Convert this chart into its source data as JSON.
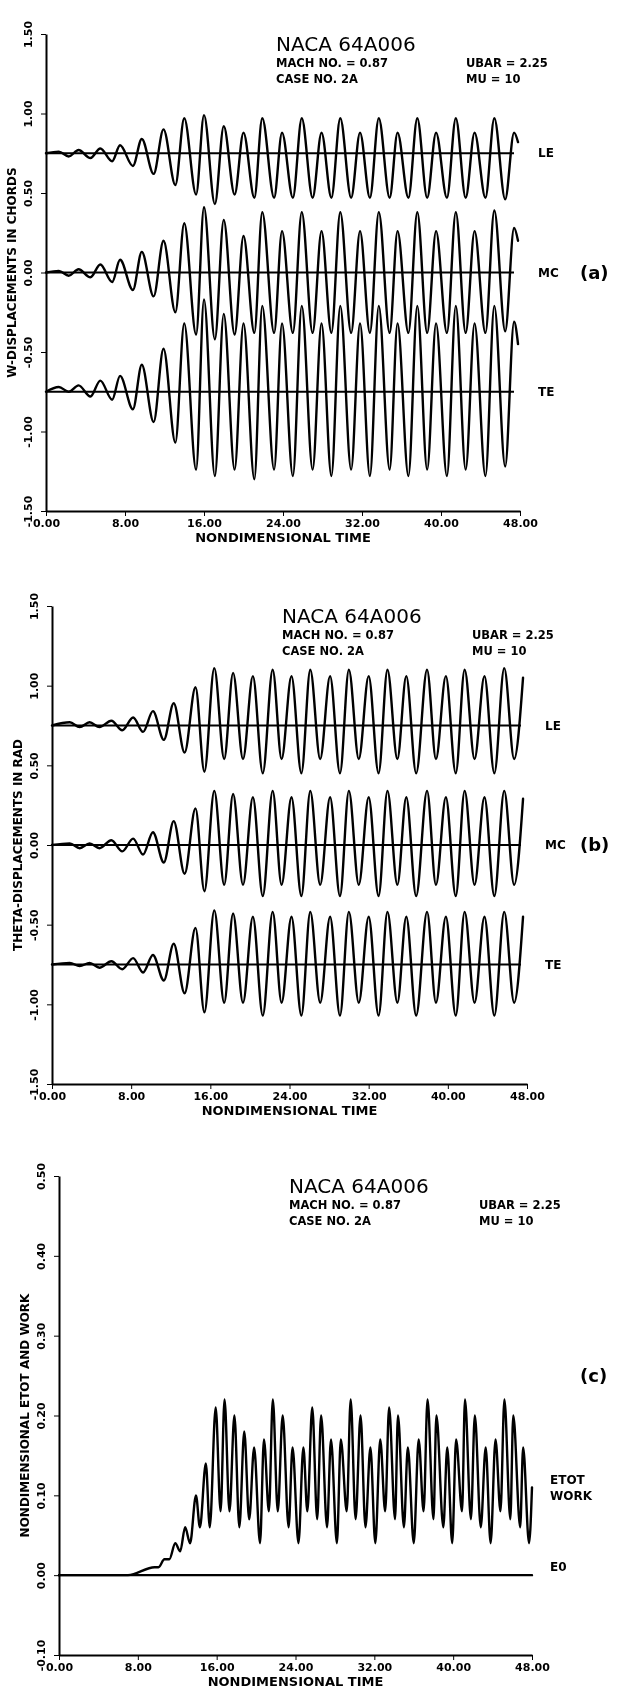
{
  "chart_data": [
    {
      "type": "line",
      "title": "NACA 64A006",
      "xlabel": "NONDIMENSIONAL TIME",
      "ylabel": "W-DISPLACEMENTS IN CHORDS",
      "annotations": [
        "MACH NO. = 0.87",
        "UBAR = 2.25",
        "CASE NO. 2A",
        "MU = 10",
        "(a)"
      ],
      "xlim": [
        0,
        48
      ],
      "xticks": [
        {
          "value": 0,
          "label": "0.00"
        },
        {
          "value": 8,
          "label": "8.00"
        },
        {
          "value": 16,
          "label": "16.00"
        },
        {
          "value": 24,
          "label": "24.00"
        },
        {
          "value": 32,
          "label": "32.00"
        },
        {
          "value": 40,
          "label": "40.00"
        },
        {
          "value": 48,
          "label": "48.00"
        }
      ],
      "ylim": [
        -1.5,
        1.5
      ],
      "yticks": [
        {
          "value": -1.5,
          "label": "-1.50"
        },
        {
          "value": -1,
          "label": "-1.00"
        },
        {
          "value": -0.5,
          "label": "-0.50"
        },
        {
          "value": 0,
          "label": "0.00"
        },
        {
          "value": 0.5,
          "label": "0.50"
        },
        {
          "value": 1,
          "label": "1.00"
        },
        {
          "value": 1.5,
          "label": "1.50"
        }
      ],
      "ref_lines": [
        {
          "axis": "y",
          "value": 0.75,
          "color": "#000000"
        },
        {
          "axis": "y",
          "value": 0,
          "color": "#000000"
        },
        {
          "axis": "y",
          "value": -0.75,
          "color": "#000000"
        }
      ],
      "series": [
        {
          "name": "LE",
          "color": "#000000",
          "x": [
            0,
            1.3,
            2.3,
            3.3,
            4.5,
            5.5,
            6.7,
            7.5,
            8.8,
            9.7,
            10.9,
            11.9,
            13.1,
            14.0,
            15.2,
            16.0,
            17.1,
            18.0,
            19.1,
            20.0,
            21.1,
            21.9,
            23.1,
            23.9,
            25.0,
            25.9,
            27.0,
            27.9,
            28.9,
            29.8,
            30.9,
            31.8,
            32.8,
            33.7,
            34.8,
            35.6,
            36.7,
            37.6,
            38.6,
            39.5,
            40.6,
            41.5,
            42.5,
            43.4,
            44.5,
            45.4,
            46.5,
            47.4,
            47.8
          ],
          "values": [
            0.75,
            0.76,
            0.73,
            0.77,
            0.72,
            0.78,
            0.7,
            0.8,
            0.67,
            0.84,
            0.62,
            0.9,
            0.55,
            0.97,
            0.49,
            0.99,
            0.43,
            0.92,
            0.49,
            0.88,
            0.47,
            0.97,
            0.47,
            0.88,
            0.47,
            0.97,
            0.47,
            0.88,
            0.47,
            0.97,
            0.47,
            0.88,
            0.47,
            0.97,
            0.47,
            0.88,
            0.47,
            0.97,
            0.47,
            0.88,
            0.47,
            0.97,
            0.47,
            0.88,
            0.47,
            0.97,
            0.46,
            0.88,
            0.82
          ]
        },
        {
          "name": "MC",
          "color": "#000000",
          "x": [
            0,
            1.3,
            2.3,
            3.3,
            4.5,
            5.5,
            6.7,
            7.5,
            8.8,
            9.7,
            10.9,
            11.9,
            13.1,
            14.0,
            15.2,
            16.0,
            17.1,
            18.0,
            19.1,
            20.0,
            21.1,
            21.9,
            23.1,
            23.9,
            25.0,
            25.9,
            27.0,
            27.9,
            28.9,
            29.8,
            30.9,
            31.8,
            32.8,
            33.7,
            34.8,
            35.6,
            36.7,
            37.6,
            38.6,
            39.5,
            40.6,
            41.5,
            42.5,
            43.4,
            44.5,
            45.4,
            46.5,
            47.4,
            47.8
          ],
          "values": [
            0,
            0.01,
            -0.02,
            0.02,
            -0.03,
            0.05,
            -0.06,
            0.08,
            -0.11,
            0.13,
            -0.15,
            0.2,
            -0.25,
            0.31,
            -0.39,
            0.41,
            -0.42,
            0.33,
            -0.39,
            0.23,
            -0.38,
            0.38,
            -0.38,
            0.26,
            -0.38,
            0.38,
            -0.38,
            0.26,
            -0.38,
            0.38,
            -0.38,
            0.26,
            -0.38,
            0.38,
            -0.38,
            0.26,
            -0.38,
            0.38,
            -0.38,
            0.26,
            -0.38,
            0.38,
            -0.38,
            0.26,
            -0.38,
            0.39,
            -0.37,
            0.28,
            0.2
          ]
        },
        {
          "name": "TE",
          "color": "#000000",
          "x": [
            0,
            1.3,
            2.3,
            3.3,
            4.5,
            5.5,
            6.7,
            7.5,
            8.8,
            9.7,
            10.9,
            11.9,
            13.1,
            14.0,
            15.2,
            16.0,
            17.1,
            18.0,
            19.1,
            20.0,
            21.1,
            21.9,
            23.1,
            23.9,
            25.0,
            25.9,
            27.0,
            27.9,
            28.9,
            29.8,
            30.9,
            31.8,
            32.8,
            33.7,
            34.8,
            35.6,
            36.7,
            37.6,
            38.6,
            39.5,
            40.6,
            41.5,
            42.5,
            43.4,
            44.5,
            45.4,
            46.5,
            47.4,
            47.8
          ],
          "values": [
            -0.75,
            -0.72,
            -0.75,
            -0.71,
            -0.78,
            -0.68,
            -0.8,
            -0.65,
            -0.86,
            -0.58,
            -0.94,
            -0.48,
            -1.07,
            -0.32,
            -1.24,
            -0.17,
            -1.28,
            -0.26,
            -1.24,
            -0.32,
            -1.3,
            -0.21,
            -1.24,
            -0.32,
            -1.28,
            -0.21,
            -1.24,
            -0.32,
            -1.28,
            -0.21,
            -1.24,
            -0.32,
            -1.28,
            -0.21,
            -1.24,
            -0.32,
            -1.28,
            -0.21,
            -1.24,
            -0.32,
            -1.28,
            -0.21,
            -1.24,
            -0.32,
            -1.28,
            -0.21,
            -1.22,
            -0.31,
            -0.45
          ]
        }
      ]
    },
    {
      "type": "line",
      "title": "NACA 64A006",
      "xlabel": "NONDIMENSIONAL TIME",
      "ylabel": "THETA-DISPLACEMENTS IN RAD",
      "annotations": [
        "MACH NO. = 0.87",
        "UBAR = 2.25",
        "CASE NO. 2A",
        "MU = 10",
        "(b)"
      ],
      "xlim": [
        0,
        48
      ],
      "xticks": [
        {
          "value": 0,
          "label": "0.00"
        },
        {
          "value": 8,
          "label": "8.00"
        },
        {
          "value": 16,
          "label": "16.00"
        },
        {
          "value": 24,
          "label": "24.00"
        },
        {
          "value": 32,
          "label": "32.00"
        },
        {
          "value": 40,
          "label": "40.00"
        },
        {
          "value": 48,
          "label": "48.00"
        }
      ],
      "ylim": [
        -1.5,
        1.5
      ],
      "yticks": [
        {
          "value": -1.5,
          "label": "-1.50"
        },
        {
          "value": -1,
          "label": "-1.00"
        },
        {
          "value": -0.5,
          "label": "-0.50"
        },
        {
          "value": 0,
          "label": "0.00"
        },
        {
          "value": 0.5,
          "label": "0.50"
        },
        {
          "value": 1,
          "label": "1.00"
        },
        {
          "value": 1.5,
          "label": "1.50"
        }
      ],
      "ref_lines": [
        {
          "axis": "y",
          "value": 0.75,
          "color": "#000000"
        },
        {
          "axis": "y",
          "value": 0,
          "color": "#000000"
        },
        {
          "axis": "y",
          "value": -0.75,
          "color": "#000000"
        }
      ],
      "series": [
        {
          "name": "LE",
          "color": "#000000",
          "x": [
            0,
            1.8,
            2.8,
            3.8,
            4.8,
            6.0,
            7.1,
            8.2,
            9.2,
            10.2,
            11.3,
            12.3,
            13.4,
            14.5,
            15.4,
            16.4,
            17.4,
            18.3,
            19.3,
            20.3,
            21.3,
            22.3,
            23.2,
            24.2,
            25.2,
            26.1,
            27.1,
            28.1,
            29.1,
            30.0,
            31.0,
            32.0,
            33.0,
            33.9,
            34.9,
            35.8,
            36.8,
            37.9,
            38.8,
            39.8,
            40.8,
            41.7,
            42.7,
            43.7,
            44.7,
            45.7,
            46.7,
            47.6
          ],
          "values": [
            0.75,
            0.77,
            0.74,
            0.77,
            0.74,
            0.78,
            0.72,
            0.8,
            0.71,
            0.84,
            0.66,
            0.89,
            0.58,
            0.99,
            0.46,
            1.11,
            0.54,
            1.08,
            0.54,
            1.06,
            0.45,
            1.1,
            0.54,
            1.06,
            0.45,
            1.1,
            0.54,
            1.06,
            0.45,
            1.1,
            0.54,
            1.06,
            0.45,
            1.1,
            0.54,
            1.06,
            0.45,
            1.1,
            0.54,
            1.06,
            0.45,
            1.1,
            0.54,
            1.06,
            0.45,
            1.11,
            0.54,
            1.05
          ]
        },
        {
          "name": "MC",
          "color": "#000000",
          "x": [
            0,
            1.8,
            2.8,
            3.8,
            4.8,
            6.0,
            7.1,
            8.2,
            9.2,
            10.2,
            11.3,
            12.3,
            13.4,
            14.5,
            15.4,
            16.4,
            17.4,
            18.3,
            19.3,
            20.3,
            21.3,
            22.3,
            23.2,
            24.2,
            25.2,
            26.1,
            27.1,
            28.1,
            29.1,
            30.0,
            31.0,
            32.0,
            33.0,
            33.9,
            34.9,
            35.8,
            36.8,
            37.9,
            38.8,
            39.8,
            40.8,
            41.7,
            42.7,
            43.7,
            44.7,
            45.7,
            46.7,
            47.6
          ],
          "values": [
            0,
            0.01,
            -0.02,
            0.01,
            -0.02,
            0.03,
            -0.04,
            0.04,
            -0.06,
            0.08,
            -0.11,
            0.15,
            -0.18,
            0.23,
            -0.29,
            0.34,
            -0.25,
            0.32,
            -0.25,
            0.3,
            -0.32,
            0.34,
            -0.25,
            0.3,
            -0.32,
            0.34,
            -0.25,
            0.3,
            -0.32,
            0.34,
            -0.25,
            0.3,
            -0.32,
            0.34,
            -0.25,
            0.3,
            -0.32,
            0.34,
            -0.25,
            0.3,
            -0.32,
            0.34,
            -0.25,
            0.3,
            -0.32,
            0.34,
            -0.25,
            0.29
          ]
        },
        {
          "name": "TE",
          "color": "#000000",
          "x": [
            0,
            1.8,
            2.8,
            3.8,
            4.8,
            6.0,
            7.1,
            8.2,
            9.2,
            10.2,
            11.3,
            12.3,
            13.4,
            14.5,
            15.4,
            16.4,
            17.4,
            18.3,
            19.3,
            20.3,
            21.3,
            22.3,
            23.2,
            24.2,
            25.2,
            26.1,
            27.1,
            28.1,
            29.1,
            30.0,
            31.0,
            32.0,
            33.0,
            33.9,
            34.9,
            35.8,
            36.8,
            37.9,
            38.8,
            39.8,
            40.8,
            41.7,
            42.7,
            43.7,
            44.7,
            45.7,
            46.7,
            47.6
          ],
          "values": [
            -0.75,
            -0.74,
            -0.76,
            -0.74,
            -0.77,
            -0.73,
            -0.78,
            -0.71,
            -0.8,
            -0.69,
            -0.85,
            -0.62,
            -0.93,
            -0.52,
            -1.05,
            -0.41,
            -0.99,
            -0.43,
            -0.99,
            -0.45,
            -1.07,
            -0.42,
            -0.99,
            -0.45,
            -1.07,
            -0.42,
            -0.99,
            -0.45,
            -1.07,
            -0.42,
            -0.99,
            -0.45,
            -1.07,
            -0.42,
            -0.99,
            -0.45,
            -1.07,
            -0.42,
            -0.99,
            -0.45,
            -1.07,
            -0.42,
            -0.99,
            -0.45,
            -1.07,
            -0.42,
            -0.99,
            -0.45
          ]
        }
      ]
    },
    {
      "type": "line",
      "title": "NACA 64A006",
      "xlabel": "NONDIMENSIONAL TIME",
      "ylabel": "NONDIMENSIONAL ETOT AND WORK",
      "annotations": [
        "MACH NO. = 0.87",
        "UBAR = 2.25",
        "CASE NO. 2A",
        "MU = 10",
        "(c)",
        "WORK"
      ],
      "xlim": [
        0,
        48
      ],
      "xticks": [
        {
          "value": 0,
          "label": "0.00"
        },
        {
          "value": 8,
          "label": "8.00"
        },
        {
          "value": 16,
          "label": "16.00"
        },
        {
          "value": 24,
          "label": "24.00"
        },
        {
          "value": 32,
          "label": "32.00"
        },
        {
          "value": 40,
          "label": "40.00"
        },
        {
          "value": 48,
          "label": "48.00"
        }
      ],
      "ylim": [
        -0.1,
        0.5
      ],
      "yticks": [
        {
          "value": -0.1,
          "label": "-0.10"
        },
        {
          "value": 0,
          "label": "0.00"
        },
        {
          "value": 0.1,
          "label": "0.10"
        },
        {
          "value": 0.2,
          "label": "0.20"
        },
        {
          "value": 0.3,
          "label": "0.30"
        },
        {
          "value": 0.4,
          "label": "0.40"
        },
        {
          "value": 0.5,
          "label": "0.50"
        }
      ],
      "series": [
        {
          "name": "ETOT",
          "color": "#000000",
          "x": [
            0,
            7.0,
            9.7,
            10.1,
            10.7,
            11.2,
            11.8,
            12.3,
            12.8,
            13.3,
            13.9,
            14.3,
            14.9,
            15.3,
            15.9,
            16.4,
            16.8,
            17.3,
            17.8,
            18.3,
            18.8,
            19.3,
            19.8,
            20.4,
            20.8,
            21.3,
            21.7,
            22.2,
            22.7,
            23.3,
            23.7,
            24.3,
            24.8,
            25.2,
            25.7,
            26.2,
            26.6,
            27.2,
            27.6,
            28.2,
            28.6,
            29.2,
            29.6,
            30.1,
            30.6,
            31.1,
            31.6,
            32.1,
            32.6,
            33.1,
            33.5,
            34.1,
            34.4,
            35.0,
            35.4,
            36.0,
            36.5,
            37.0,
            37.4,
            38.0,
            38.3,
            39.0,
            39.4,
            39.9,
            40.3,
            40.9,
            41.2,
            41.8,
            42.2,
            42.8,
            43.3,
            43.8,
            44.3,
            44.8,
            45.2,
            45.8,
            46.1,
            46.8,
            47.1,
            47.7,
            48.0
          ],
          "values": [
            0,
            0,
            0.01,
            0.01,
            0.02,
            0.02,
            0.04,
            0.03,
            0.06,
            0.04,
            0.1,
            0.06,
            0.14,
            0.06,
            0.21,
            0.08,
            0.22,
            0.08,
            0.2,
            0.06,
            0.18,
            0.07,
            0.16,
            0.04,
            0.17,
            0.08,
            0.22,
            0.08,
            0.2,
            0.06,
            0.16,
            0.04,
            0.16,
            0.08,
            0.21,
            0.07,
            0.2,
            0.06,
            0.17,
            0.04,
            0.17,
            0.08,
            0.22,
            0.07,
            0.2,
            0.06,
            0.16,
            0.04,
            0.17,
            0.08,
            0.21,
            0.07,
            0.2,
            0.06,
            0.16,
            0.04,
            0.17,
            0.08,
            0.22,
            0.07,
            0.2,
            0.06,
            0.16,
            0.04,
            0.17,
            0.08,
            0.22,
            0.07,
            0.2,
            0.06,
            0.16,
            0.04,
            0.17,
            0.08,
            0.22,
            0.07,
            0.2,
            0.06,
            0.16,
            0.04,
            0.11
          ]
        },
        {
          "name": "E0",
          "color": "#000000",
          "x": [
            0,
            48
          ],
          "values": [
            0,
            0
          ]
        }
      ]
    }
  ]
}
